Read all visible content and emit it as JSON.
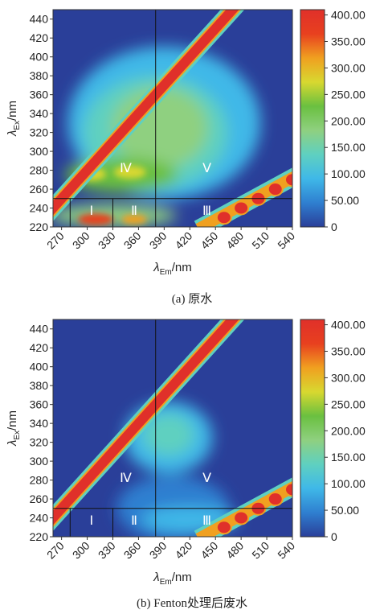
{
  "colors": {
    "scale": [
      "#2a3f99",
      "#2f7fd0",
      "#3fb8e8",
      "#5fd0c0",
      "#8fd080",
      "#6ac040",
      "#d8d830",
      "#f0a020",
      "#e8401f",
      "#e0302a"
    ],
    "frame": "#333333"
  },
  "panels": [
    {
      "caption": "(a) 原水",
      "chart_data": {
        "type": "heatmap",
        "xlabel_main": "λ",
        "xlabel_sub": "Em",
        "xlabel_unit": "/nm",
        "ylabel_main": "λ",
        "ylabel_sub": "Ex",
        "ylabel_unit": "/nm",
        "x_ticks": [
          "270",
          "300",
          "330",
          "360",
          "390",
          "420",
          "450",
          "480",
          "510",
          "540"
        ],
        "y_ticks": [
          "220",
          "240",
          "260",
          "280",
          "300",
          "320",
          "340",
          "360",
          "380",
          "400",
          "420",
          "440"
        ],
        "xlim": [
          260,
          540
        ],
        "ylim": [
          220,
          450
        ],
        "colorbar_ticks": [
          "0",
          "50.00",
          "100.00",
          "150.00",
          "200.00",
          "250.00",
          "300.00",
          "350.00",
          "400.00"
        ],
        "colorbar_range": [
          0,
          410
        ],
        "divider_x": 380,
        "divider_y": 250,
        "region_label_x": [
          280,
          330
        ],
        "regions": [
          {
            "label": "Ⅰ",
            "x": 305,
            "y": 238
          },
          {
            "label": "Ⅱ",
            "x": 355,
            "y": 238
          },
          {
            "label": "Ⅲ",
            "x": 440,
            "y": 238
          },
          {
            "label": "Ⅳ",
            "x": 345,
            "y": 283
          },
          {
            "label": "Ⅴ",
            "x": 440,
            "y": 283
          }
        ],
        "peaks": [
          {
            "region": "Ⅳ",
            "em": 325,
            "ex": 275,
            "intensity": 330
          },
          {
            "region": "Ⅰ",
            "em": 310,
            "ex": 228,
            "intensity": 380
          },
          {
            "region": "Ⅴ",
            "em": 390,
            "ex": 320,
            "intensity": 200
          }
        ]
      }
    },
    {
      "caption": "(b) Fenton处理后废水",
      "chart_data": {
        "type": "heatmap",
        "xlabel_main": "λ",
        "xlabel_sub": "Em",
        "xlabel_unit": "/nm",
        "ylabel_main": "λ",
        "ylabel_sub": "Ex",
        "ylabel_unit": "/nm",
        "x_ticks": [
          "270",
          "300",
          "330",
          "360",
          "390",
          "420",
          "450",
          "480",
          "510",
          "540"
        ],
        "y_ticks": [
          "220",
          "240",
          "260",
          "280",
          "300",
          "320",
          "340",
          "360",
          "380",
          "400",
          "420",
          "440"
        ],
        "xlim": [
          260,
          540
        ],
        "ylim": [
          220,
          450
        ],
        "colorbar_ticks": [
          "0",
          "50.00",
          "100.00",
          "150.00",
          "200.00",
          "250.00",
          "300.00",
          "350.00",
          "400.00"
        ],
        "colorbar_range": [
          0,
          410
        ],
        "divider_x": 380,
        "divider_y": 250,
        "region_label_x": [
          280,
          330
        ],
        "regions": [
          {
            "label": "Ⅰ",
            "x": 305,
            "y": 238
          },
          {
            "label": "Ⅱ",
            "x": 355,
            "y": 238
          },
          {
            "label": "Ⅲ",
            "x": 440,
            "y": 238
          },
          {
            "label": "Ⅳ",
            "x": 345,
            "y": 283
          },
          {
            "label": "Ⅴ",
            "x": 440,
            "y": 283
          }
        ],
        "peaks": [
          {
            "region": "Ⅴ",
            "em": 395,
            "ex": 325,
            "intensity": 130
          }
        ]
      }
    }
  ]
}
